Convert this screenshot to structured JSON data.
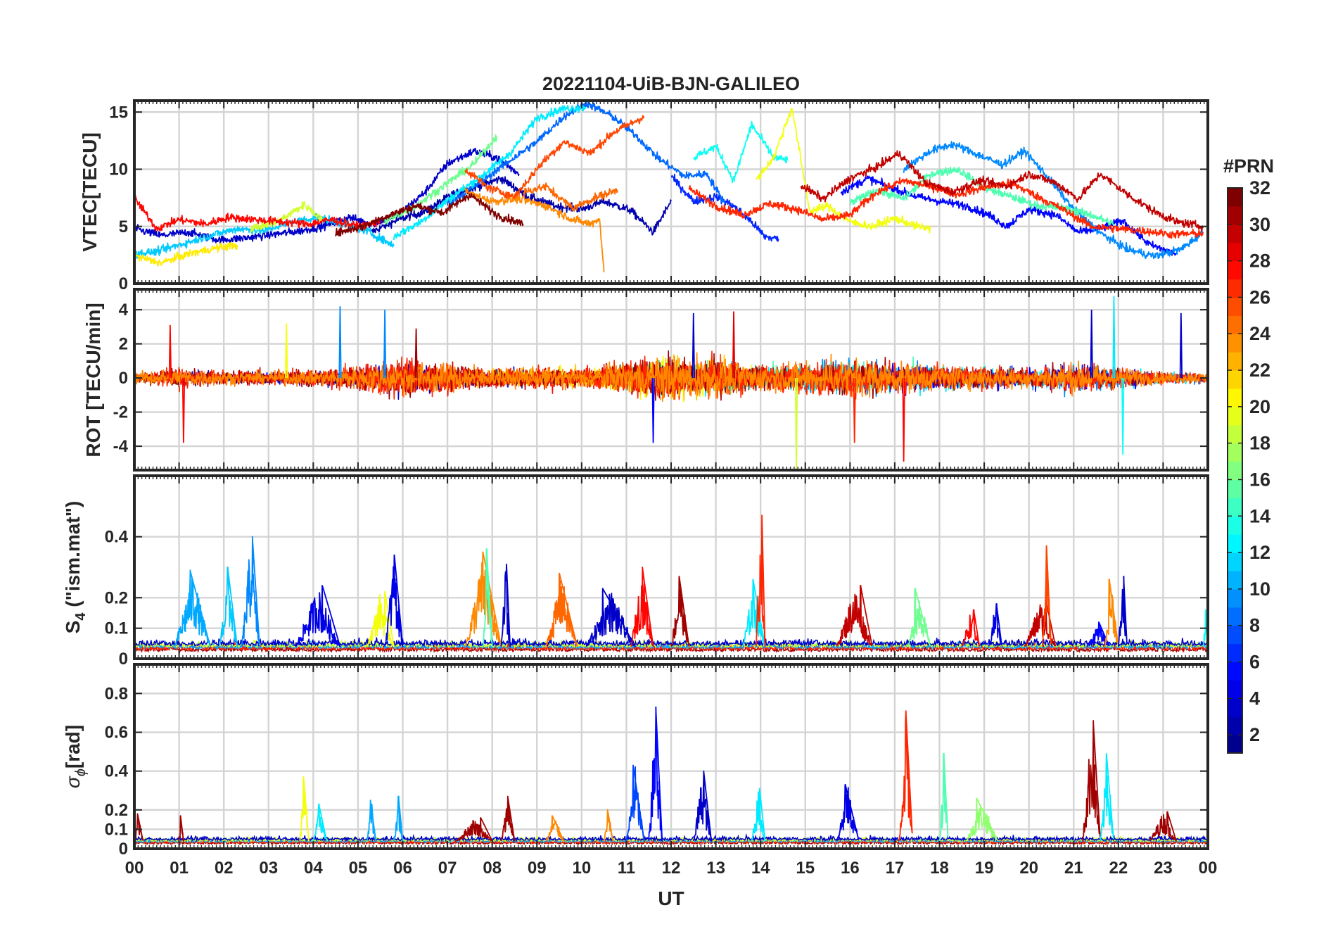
{
  "figure_title": "20221104-UiB-BJN-GALILEO",
  "xlabel": "UT",
  "x_tick_labels": [
    "00",
    "01",
    "02",
    "03",
    "04",
    "05",
    "06",
    "07",
    "08",
    "09",
    "10",
    "11",
    "12",
    "13",
    "14",
    "15",
    "16",
    "17",
    "18",
    "19",
    "20",
    "21",
    "22",
    "23",
    "00"
  ],
  "colorbar": {
    "title": "#PRN",
    "tick_labels": [
      "2",
      "4",
      "6",
      "8",
      "10",
      "12",
      "14",
      "16",
      "18",
      "20",
      "22",
      "24",
      "26",
      "28",
      "30",
      "32"
    ],
    "range": [
      1,
      32
    ],
    "colormap": "jet",
    "colors": [
      "#00008f",
      "#0000ff",
      "#0080ff",
      "#00ffff",
      "#80ff80",
      "#ffff00",
      "#ff8000",
      "#ff0000",
      "#800000"
    ]
  },
  "panel_labels": {
    "vtec": "VTEC[TECU]",
    "rot": "ROT [TECU/min]",
    "s4_main": "S",
    "s4_sub": "4",
    "s4_rest": " (\"ism.mat\")",
    "sigma_main": "σ",
    "sigma_sub": "ϕ",
    "sigma_rest": "[rad]"
  },
  "chart_data": [
    {
      "id": "vtec",
      "type": "line",
      "title": "20221104-UiB-BJN-GALILEO",
      "ylabel": "VTEC[TECU]",
      "xlabel": "",
      "xlim": [
        0,
        24
      ],
      "ylim": [
        0,
        16
      ],
      "y_ticks": [
        0,
        5,
        10,
        15
      ],
      "y_tick_labels": [
        "0",
        "5",
        "10",
        "15"
      ],
      "grid": true,
      "series": [
        {
          "prn": 2,
          "x": [
            5.3,
            5.9,
            6.5,
            7.1,
            7.6,
            8.2,
            8.8,
            9.4,
            10.0,
            10.5,
            11.1,
            11.6,
            12.0
          ],
          "y": [
            4.5,
            5.6,
            6.3,
            7.8,
            8.4,
            9.2,
            7.6,
            6.8,
            6.5,
            7.2,
            6.4,
            4.5,
            7.2
          ]
        },
        {
          "prn": 3,
          "x": [
            0.0,
            0.6,
            1.2,
            1.9,
            2.5,
            3.1,
            3.7,
            4.2,
            4.8,
            5.3,
            5.9,
            6.5,
            7.0,
            7.6,
            8.1,
            8.6
          ],
          "y": [
            4.8,
            4.2,
            4.5,
            3.8,
            4.0,
            4.3,
            4.6,
            5.0,
            5.8,
            5.2,
            6.0,
            8.0,
            10.5,
            11.6,
            11.0,
            9.6
          ]
        },
        {
          "prn": 5,
          "x": [
            15.8,
            16.4,
            16.9,
            17.5,
            18.0,
            18.6,
            19.1,
            19.5,
            20.0,
            20.6,
            21.1,
            21.6,
            22.1,
            22.7,
            23.3
          ],
          "y": [
            8.0,
            9.2,
            8.4,
            7.6,
            7.2,
            6.8,
            6.0,
            5.0,
            6.5,
            6.0,
            4.5,
            4.8,
            5.5,
            3.4,
            2.6
          ]
        },
        {
          "prn": 6,
          "x": [
            12.0,
            12.5,
            13.0,
            13.4,
            13.8,
            14.1,
            14.4
          ],
          "y": [
            9.4,
            7.2,
            7.6,
            6.8,
            5.4,
            4.1,
            3.9
          ]
        },
        {
          "prn": 8,
          "x": [
            7.0,
            7.6,
            8.3,
            9.0,
            9.6,
            10.1,
            10.7,
            11.2,
            11.7,
            12.3,
            12.8,
            13.2
          ],
          "y": [
            7.0,
            8.5,
            10.5,
            12.4,
            14.6,
            15.8,
            14.6,
            13.0,
            11.0,
            9.4,
            9.6,
            7.0
          ]
        },
        {
          "prn": 9,
          "x": [
            17.2,
            17.8,
            18.3,
            18.9,
            19.4,
            19.9,
            20.4,
            21.0,
            21.6,
            22.2,
            22.8,
            23.4,
            23.9
          ],
          "y": [
            10.0,
            11.6,
            12.2,
            11.2,
            10.4,
            11.6,
            9.4,
            6.5,
            4.4,
            3.0,
            2.4,
            3.0,
            4.5
          ]
        },
        {
          "prn": 11,
          "x": [
            0.0,
            0.5,
            1.1,
            1.7,
            2.3,
            2.9,
            3.5,
            4.1,
            4.7,
            5.2,
            5.8
          ],
          "y": [
            2.6,
            2.8,
            3.5,
            4.2,
            4.8,
            4.6,
            5.4,
            5.8,
            5.2,
            4.6,
            3.3
          ]
        },
        {
          "prn": 12,
          "x": [
            5.8,
            6.4,
            7.1,
            7.8,
            8.4,
            9.0,
            9.6,
            10.1
          ],
          "y": [
            4.1,
            5.4,
            7.6,
            9.5,
            11.4,
            14.5,
            15.3,
            15.4
          ]
        },
        {
          "prn": 13,
          "x": [
            12.5,
            13.0,
            13.4,
            13.8,
            14.3,
            14.6
          ],
          "y": [
            11.0,
            12.0,
            9.0,
            13.9,
            11.0,
            10.8
          ]
        },
        {
          "prn": 15,
          "x": [
            16.0,
            16.6,
            17.2,
            17.8,
            18.4,
            19.0,
            19.6,
            20.2,
            20.8,
            21.4,
            21.9
          ],
          "y": [
            7.0,
            8.2,
            7.4,
            9.6,
            10.0,
            8.4,
            7.6,
            6.8,
            6.6,
            6.0,
            5.2
          ]
        },
        {
          "prn": 16,
          "x": [
            5.6,
            6.3,
            7.0,
            7.6,
            8.1
          ],
          "y": [
            5.4,
            6.8,
            8.8,
            10.5,
            12.9
          ]
        },
        {
          "prn": 19,
          "x": [
            2.6,
            3.2,
            3.8,
            4.2
          ],
          "y": [
            4.8,
            5.4,
            6.9,
            5.6
          ]
        },
        {
          "prn": 20,
          "x": [
            13.9,
            14.3,
            14.7,
            15.1,
            15.5,
            16.0,
            16.5,
            17.0,
            17.5,
            17.8
          ],
          "y": [
            9.0,
            11.1,
            15.4,
            6.3,
            6.8,
            5.4,
            5.0,
            5.7,
            5.0,
            4.8
          ]
        },
        {
          "prn": 21,
          "x": [
            0.0,
            0.6,
            1.2,
            1.8,
            2.3
          ],
          "y": [
            2.4,
            1.8,
            2.6,
            3.1,
            3.4
          ]
        },
        {
          "prn": 24,
          "x": [
            7.4,
            8.0,
            8.6,
            9.2,
            9.8,
            10.2,
            10.4,
            10.5
          ],
          "y": [
            8.0,
            7.2,
            7.4,
            6.8,
            5.6,
            5.2,
            5.7,
            1.0
          ]
        },
        {
          "prn": 25,
          "x": [
            8.7,
            9.2,
            9.8,
            10.3,
            10.8
          ],
          "y": [
            8.0,
            8.5,
            6.6,
            7.5,
            8.2
          ]
        },
        {
          "prn": 26,
          "x": [
            7.4,
            7.9,
            8.5,
            9.1,
            9.6,
            10.2,
            10.7,
            11.1,
            11.4
          ],
          "y": [
            10.0,
            8.4,
            7.6,
            10.5,
            12.4,
            11.4,
            13.2,
            14.0,
            14.6
          ]
        },
        {
          "prn": 27,
          "x": [
            12.4,
            13.0,
            13.6,
            14.2,
            14.8,
            15.4,
            16.0,
            16.6,
            17.2,
            17.8,
            18.4,
            19.0,
            19.6,
            20.2,
            20.8,
            21.4,
            22.0,
            22.6,
            23.2,
            23.9
          ],
          "y": [
            8.3,
            6.8,
            6.0,
            7.0,
            6.5,
            5.6,
            6.0,
            8.0,
            9.0,
            8.5,
            7.8,
            8.4,
            8.8,
            7.6,
            6.4,
            5.0,
            4.8,
            4.6,
            4.3,
            4.4
          ]
        },
        {
          "prn": 28,
          "x": [
            0.0,
            0.5,
            1.0,
            1.6,
            2.1,
            2.7,
            3.3,
            3.9,
            4.4,
            5.0,
            5.5
          ],
          "y": [
            7.5,
            4.8,
            5.6,
            5.2,
            5.8,
            5.6,
            5.4,
            5.2,
            5.6,
            5.0,
            5.4
          ]
        },
        {
          "prn": 30,
          "x": [
            14.9,
            15.4,
            16.0,
            16.6,
            17.1,
            17.7,
            18.3,
            18.9,
            19.5,
            20.0,
            20.6,
            21.1,
            21.6,
            22.2,
            22.8,
            23.3,
            23.9
          ],
          "y": [
            8.6,
            7.4,
            9.2,
            10.2,
            11.4,
            8.8,
            8.0,
            9.0,
            8.5,
            9.6,
            8.8,
            7.4,
            9.6,
            7.8,
            6.3,
            5.4,
            5.0
          ]
        },
        {
          "prn": 32,
          "x": [
            4.5,
            5.1,
            5.7,
            6.3,
            6.9,
            7.5,
            8.1,
            8.7
          ],
          "y": [
            4.4,
            5.0,
            6.0,
            6.8,
            6.2,
            7.8,
            6.0,
            5.2
          ]
        }
      ]
    },
    {
      "id": "rot",
      "type": "line",
      "ylabel": "ROT [TECU/min]",
      "xlabel": "",
      "xlim": [
        0,
        24
      ],
      "ylim": [
        -5.4,
        5.2
      ],
      "y_ticks": [
        -4,
        -2,
        0,
        2,
        4
      ],
      "y_tick_labels": [
        "-4",
        "-2",
        "0",
        "2",
        "4"
      ],
      "grid": true,
      "activity_envelope": {
        "hours": [
          0,
          1,
          2,
          3,
          4,
          5,
          6,
          7,
          8,
          9,
          10,
          11,
          12,
          13,
          14,
          15,
          16,
          17,
          18,
          19,
          20,
          21,
          22,
          23,
          24
        ],
        "amplitude": [
          0.9,
          1.4,
          1.0,
          0.9,
          1.1,
          1.6,
          2.4,
          2.0,
          1.2,
          1.4,
          1.2,
          2.2,
          3.0,
          2.6,
          1.8,
          2.0,
          2.8,
          2.2,
          1.8,
          1.6,
          1.4,
          2.2,
          1.6,
          0.8,
          0.8
        ]
      },
      "spikes": [
        {
          "x": 0.8,
          "y": 3.1,
          "prn": 28
        },
        {
          "x": 1.1,
          "y": -3.8,
          "prn": 28
        },
        {
          "x": 3.4,
          "y": 3.2,
          "prn": 20
        },
        {
          "x": 4.6,
          "y": 4.2,
          "prn": 9
        },
        {
          "x": 5.6,
          "y": 4.0,
          "prn": 9
        },
        {
          "x": 6.3,
          "y": 2.9,
          "prn": 31
        },
        {
          "x": 11.6,
          "y": -3.8,
          "prn": 5
        },
        {
          "x": 12.5,
          "y": 3.8,
          "prn": 3
        },
        {
          "x": 13.4,
          "y": 3.9,
          "prn": 29
        },
        {
          "x": 14.8,
          "y": -5.4,
          "prn": 19
        },
        {
          "x": 16.1,
          "y": -3.8,
          "prn": 27
        },
        {
          "x": 17.2,
          "y": -4.9,
          "prn": 28
        },
        {
          "x": 21.4,
          "y": 4.0,
          "prn": 3
        },
        {
          "x": 21.9,
          "y": 4.8,
          "prn": 12
        },
        {
          "x": 22.1,
          "y": -4.5,
          "prn": 13
        },
        {
          "x": 23.4,
          "y": 3.8,
          "prn": 3
        }
      ]
    },
    {
      "id": "s4",
      "type": "line",
      "ylabel": "S4 (\"ism.mat\")",
      "xlabel": "",
      "xlim": [
        0,
        24
      ],
      "ylim": [
        0,
        0.6
      ],
      "y_ticks": [
        0,
        0.1,
        0.2,
        0.4
      ],
      "y_tick_labels": [
        "0",
        "0.1",
        "0.2",
        "0.4"
      ],
      "grid": true,
      "baseline": 0.04,
      "bursts": [
        {
          "start": 0.9,
          "end": 1.7,
          "peak": 0.29,
          "prn": 10
        },
        {
          "start": 1.9,
          "end": 2.3,
          "peak": 0.3,
          "prn": 11
        },
        {
          "start": 2.4,
          "end": 2.8,
          "peak": 0.4,
          "prn": 9
        },
        {
          "start": 3.6,
          "end": 4.6,
          "peak": 0.24,
          "prn": 4
        },
        {
          "start": 5.2,
          "end": 5.8,
          "peak": 0.22,
          "prn": 20
        },
        {
          "start": 5.6,
          "end": 6.0,
          "peak": 0.34,
          "prn": 4
        },
        {
          "start": 7.4,
          "end": 8.2,
          "peak": 0.35,
          "prn": 24
        },
        {
          "start": 7.8,
          "end": 8.0,
          "peak": 0.36,
          "prn": 15
        },
        {
          "start": 8.2,
          "end": 8.4,
          "peak": 0.31,
          "prn": 3
        },
        {
          "start": 9.2,
          "end": 9.9,
          "peak": 0.28,
          "prn": 25
        },
        {
          "start": 10.1,
          "end": 11.2,
          "peak": 0.23,
          "prn": 3
        },
        {
          "start": 11.1,
          "end": 11.6,
          "peak": 0.3,
          "prn": 28
        },
        {
          "start": 12.0,
          "end": 12.4,
          "peak": 0.27,
          "prn": 31
        },
        {
          "start": 13.6,
          "end": 14.1,
          "peak": 0.26,
          "prn": 12
        },
        {
          "start": 13.9,
          "end": 14.1,
          "peak": 0.47,
          "prn": 27
        },
        {
          "start": 15.7,
          "end": 16.5,
          "peak": 0.24,
          "prn": 30
        },
        {
          "start": 17.3,
          "end": 17.8,
          "peak": 0.23,
          "prn": 16
        },
        {
          "start": 18.5,
          "end": 18.9,
          "peak": 0.16,
          "prn": 28
        },
        {
          "start": 19.1,
          "end": 19.4,
          "peak": 0.18,
          "prn": 4
        },
        {
          "start": 19.9,
          "end": 20.6,
          "peak": 0.19,
          "prn": 30
        },
        {
          "start": 20.3,
          "end": 20.5,
          "peak": 0.37,
          "prn": 26
        },
        {
          "start": 21.3,
          "end": 21.8,
          "peak": 0.12,
          "prn": 5
        },
        {
          "start": 21.7,
          "end": 22.0,
          "peak": 0.26,
          "prn": 24
        },
        {
          "start": 22.0,
          "end": 22.2,
          "peak": 0.27,
          "prn": 3
        },
        {
          "start": 23.9,
          "end": 24.0,
          "peak": 0.16,
          "prn": 13
        }
      ]
    },
    {
      "id": "sigma_phi",
      "type": "line",
      "ylabel": "σϕ [rad]",
      "xlabel": "UT",
      "xlim": [
        0,
        24
      ],
      "ylim": [
        0,
        0.95
      ],
      "y_ticks": [
        0,
        0.1,
        0.2,
        0.4,
        0.6,
        0.8
      ],
      "y_tick_labels": [
        "0",
        "0.1",
        "0.2",
        "0.4",
        "0.6",
        "0.8"
      ],
      "grid": true,
      "baseline": 0.04,
      "bursts": [
        {
          "start": 0.0,
          "end": 0.2,
          "peak": 0.18,
          "prn": 31
        },
        {
          "start": 1.0,
          "end": 1.1,
          "peak": 0.17,
          "prn": 31
        },
        {
          "start": 3.7,
          "end": 3.9,
          "peak": 0.37,
          "prn": 20
        },
        {
          "start": 4.0,
          "end": 4.3,
          "peak": 0.23,
          "prn": 12
        },
        {
          "start": 5.2,
          "end": 5.4,
          "peak": 0.25,
          "prn": 10
        },
        {
          "start": 5.8,
          "end": 6.0,
          "peak": 0.27,
          "prn": 10
        },
        {
          "start": 7.2,
          "end": 8.0,
          "peak": 0.16,
          "prn": 31
        },
        {
          "start": 8.2,
          "end": 8.5,
          "peak": 0.27,
          "prn": 31
        },
        {
          "start": 9.2,
          "end": 9.6,
          "peak": 0.17,
          "prn": 24
        },
        {
          "start": 10.5,
          "end": 10.7,
          "peak": 0.2,
          "prn": 24
        },
        {
          "start": 11.5,
          "end": 11.8,
          "peak": 0.73,
          "prn": 5
        },
        {
          "start": 11.0,
          "end": 11.4,
          "peak": 0.43,
          "prn": 7
        },
        {
          "start": 12.5,
          "end": 12.9,
          "peak": 0.4,
          "prn": 3
        },
        {
          "start": 13.8,
          "end": 14.1,
          "peak": 0.31,
          "prn": 12
        },
        {
          "start": 15.7,
          "end": 16.2,
          "peak": 0.33,
          "prn": 4
        },
        {
          "start": 17.1,
          "end": 17.4,
          "peak": 0.71,
          "prn": 27
        },
        {
          "start": 18.0,
          "end": 18.2,
          "peak": 0.49,
          "prn": 15
        },
        {
          "start": 18.6,
          "end": 19.3,
          "peak": 0.26,
          "prn": 17
        },
        {
          "start": 21.2,
          "end": 21.6,
          "peak": 0.66,
          "prn": 31
        },
        {
          "start": 21.6,
          "end": 21.9,
          "peak": 0.49,
          "prn": 12
        },
        {
          "start": 22.7,
          "end": 23.3,
          "peak": 0.19,
          "prn": 31
        }
      ]
    }
  ]
}
